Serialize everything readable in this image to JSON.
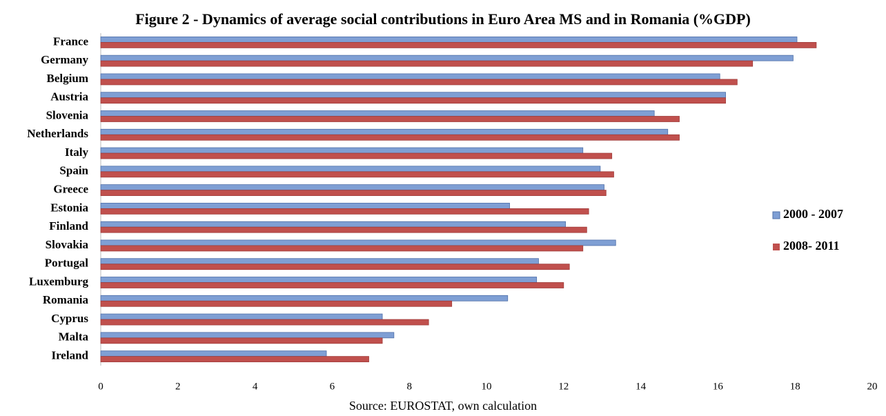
{
  "chart_data": {
    "type": "hbar",
    "title": "Figure 2 - Dynamics of average social contributions in Euro Area MS and in Romania (%GDP)",
    "source": "Source: EUROSTAT, own calculation",
    "categories": [
      "France",
      "Germany",
      "Belgium",
      "Austria",
      "Slovenia",
      "Netherlands",
      "Italy",
      "Spain",
      "Greece",
      "Estonia",
      "Finland",
      "Slovakia",
      "Portugal",
      "Luxemburg",
      "Romania",
      "Cyprus",
      "Malta",
      "Ireland"
    ],
    "series": [
      {
        "name": "2000 - 2007",
        "color": "#7f9fd4",
        "values": [
          18.05,
          17.95,
          16.05,
          16.2,
          14.35,
          14.7,
          12.5,
          12.95,
          13.05,
          10.6,
          12.05,
          13.35,
          11.35,
          11.3,
          10.55,
          7.3,
          7.6,
          5.85
        ]
      },
      {
        "name": "2008- 2011",
        "color": "#c0504d",
        "values": [
          18.55,
          16.9,
          16.5,
          16.2,
          15.0,
          15.0,
          13.25,
          13.3,
          13.1,
          12.65,
          12.6,
          12.5,
          12.15,
          12.0,
          9.1,
          8.5,
          7.3,
          6.95
        ]
      }
    ],
    "xlim": [
      0,
      20
    ],
    "xticks": [
      0,
      2,
      4,
      6,
      8,
      10,
      12,
      14,
      16,
      18,
      20
    ],
    "grid": false,
    "legend": "right"
  }
}
